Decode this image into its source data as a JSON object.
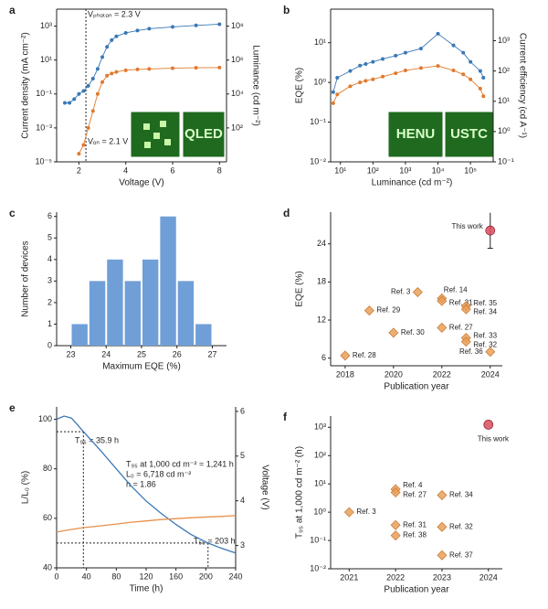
{
  "chart_data": [
    {
      "type": "line",
      "panel": "a",
      "xlabel": "Voltage (V)",
      "ylabel": "Current density (mA cm⁻²)",
      "y2label": "Luminance (cd m⁻²)",
      "yscale": "log",
      "y2scale": "log",
      "xlim": [
        1.05,
        8.3
      ],
      "ylim": [
        1e-05,
        10000
      ],
      "y2lim": [
        1,
        1000000000
      ],
      "xticks": [
        2,
        4,
        6,
        8
      ],
      "yticks": [
        {
          "value": 1e-05,
          "label": "10⁻⁵"
        },
        {
          "value": 0.001,
          "label": "10⁻³"
        },
        {
          "value": 0.1,
          "label": "10⁻¹"
        },
        {
          "value": 10,
          "label": "10¹"
        },
        {
          "value": 1000,
          "label": "10³"
        }
      ],
      "y2ticks": [
        {
          "value": 100,
          "label": "10²"
        },
        {
          "value": 10000,
          "label": "10⁴"
        },
        {
          "value": 1000000,
          "label": "10⁶"
        },
        {
          "value": 100000000,
          "label": "10⁸"
        }
      ],
      "x": [
        1.4,
        1.6,
        1.8,
        2.0,
        2.2,
        2.4,
        2.6,
        2.8,
        3.0,
        3.2,
        3.4,
        3.6,
        4.0,
        4.5,
        5.0,
        6.0,
        7.0,
        8.0
      ],
      "series": [
        {
          "color": "#3a78b5",
          "values": [
            0.03,
            0.03,
            0.05,
            0.1,
            0.15,
            0.3,
            0.8,
            3,
            15,
            60,
            150,
            250,
            400,
            550,
            700,
            900,
            1100,
            1300
          ]
        },
        {
          "color": "#e07a2e",
          "axis": "y2",
          "values": [
            null,
            null,
            null,
            3,
            10,
            100,
            1000,
            10000,
            50000,
            120000,
            160000,
            200000,
            250000,
            280000,
            300000,
            330000,
            350000,
            360000
          ]
        }
      ],
      "reference_x": 2.3,
      "annotations": [
        "Vₚₕₒₜₒₙ = 2.3 V",
        "Vₒₙ = 2.1 V"
      ],
      "inset_texts": [
        "QLED"
      ]
    },
    {
      "type": "line",
      "panel": "b",
      "xlabel": "Luminance (cd m⁻²)",
      "ylabel": "EQE (%)",
      "y2label": "Current efficiency (cd A⁻¹)",
      "xscale": "log",
      "yscale": "log",
      "y2scale": "log",
      "xlim": [
        5,
        500000
      ],
      "ylim": [
        0.01,
        70
      ],
      "y2lim": [
        0.1,
        11000
      ],
      "xticks": [
        {
          "value": 10,
          "label": "10¹"
        },
        {
          "value": 100,
          "label": "10²"
        },
        {
          "value": 1000,
          "label": "10³"
        },
        {
          "value": 10000,
          "label": "10⁴"
        },
        {
          "value": 100000,
          "label": "10⁵"
        }
      ],
      "yticks": [
        {
          "value": 0.01,
          "label": "10⁻²"
        },
        {
          "value": 0.1,
          "label": "10⁻¹"
        },
        {
          "value": 1,
          "label": "10⁰"
        },
        {
          "value": 10,
          "label": "10¹"
        }
      ],
      "y2ticks": [
        {
          "value": 0.1,
          "label": "10⁻¹"
        },
        {
          "value": 1,
          "label": "10⁰"
        },
        {
          "value": 10,
          "label": "10¹"
        },
        {
          "value": 100,
          "label": "10²"
        },
        {
          "value": 1000,
          "label": "10³"
        }
      ],
      "x": [
        6,
        8,
        20,
        40,
        60,
        100,
        200,
        500,
        1000,
        3000,
        10000,
        30000,
        60000,
        100000,
        200000,
        250000
      ],
      "series": [
        {
          "color": "#e07a2e",
          "values": [
            0.3,
            0.5,
            0.8,
            1.0,
            1.1,
            1.2,
            1.4,
            1.7,
            2.0,
            2.3,
            2.6,
            2.0,
            1.6,
            1.2,
            0.7,
            0.45
          ]
        },
        {
          "color": "#3a78b5",
          "axis": "y2",
          "values": [
            20,
            60,
            100,
            150,
            170,
            200,
            250,
            320,
            400,
            550,
            1700,
            700,
            400,
            200,
            100,
            60
          ]
        }
      ],
      "inset_texts": [
        "HENU",
        "USTC"
      ]
    },
    {
      "type": "histogram",
      "panel": "c",
      "xlabel": "Maximum EQE (%)",
      "ylabel": "Number of devices",
      "color": "#6f9fd6",
      "xlim": [
        22.6,
        27.4
      ],
      "ylim": [
        0,
        6.2
      ],
      "xticks": [
        23,
        24,
        25,
        26,
        27
      ],
      "yticks": [
        0,
        1,
        2,
        3,
        4,
        5,
        6
      ],
      "bins": [
        23,
        23.5,
        24,
        24.5,
        25,
        25.5,
        26,
        26.5,
        27
      ],
      "counts": [
        1,
        3,
        4,
        3,
        4,
        6,
        3,
        1
      ]
    },
    {
      "type": "scatter",
      "panel": "d",
      "xlabel": "Publication year",
      "ylabel": "EQE (%)",
      "xlim": [
        2017.4,
        2024.5
      ],
      "ylim": [
        4.8,
        29
      ],
      "xticks": [
        2018,
        2020,
        2022,
        2024
      ],
      "yticks": [
        6,
        12,
        18,
        24
      ],
      "series": [
        {
          "color": "#e8a05a",
          "marker": "diamond",
          "x": [
            2018,
            2019,
            2020,
            2021,
            2022,
            2022,
            2022,
            2023,
            2023,
            2023,
            2023,
            2024
          ],
          "values": [
            6.4,
            13.5,
            10.0,
            16.4,
            15.4,
            15.0,
            10.8,
            14.2,
            13.7,
            9.2,
            8.6,
            7.0
          ],
          "labels": [
            "Ref. 28",
            "Ref. 29",
            "Ref. 30",
            "Ref. 3",
            "Ref. 14",
            "Ref. 31",
            "Ref. 27",
            "Ref. 35",
            "Ref. 34",
            "Ref. 33",
            "Ref. 32",
            "Ref. 36"
          ]
        },
        {
          "name": "This work",
          "color": "#d94c5e",
          "marker": "circle",
          "x": [
            2024
          ],
          "values": [
            26.1
          ],
          "errors": [
            2.8
          ]
        }
      ]
    },
    {
      "type": "line",
      "panel": "e",
      "xlabel": "Time (h)",
      "ylabel": "L/L₀ (%)",
      "y2label": "Voltage (V)",
      "xlim": [
        0,
        240
      ],
      "ylim": [
        40,
        105
      ],
      "y2lim": [
        2.5,
        6.1
      ],
      "xticks": [
        0,
        40,
        80,
        120,
        160,
        200,
        240
      ],
      "yticks": [
        40,
        60,
        80,
        100
      ],
      "y2ticks": [
        3,
        4,
        5,
        6
      ],
      "x": [
        0,
        10,
        20,
        36,
        60,
        80,
        100,
        120,
        140,
        160,
        180,
        203,
        220,
        240
      ],
      "series": [
        {
          "color": "#3a78b5",
          "values": [
            100,
            101.3,
            100.5,
            95,
            87,
            80,
            73,
            67,
            62,
            57.5,
            53.5,
            50,
            48,
            46
          ]
        },
        {
          "color": "#e8904a",
          "axis": "y2",
          "values": [
            3.3,
            3.33,
            3.36,
            3.4,
            3.44,
            3.48,
            3.52,
            3.55,
            3.58,
            3.6,
            3.62,
            3.64,
            3.65,
            3.67
          ]
        }
      ],
      "reference_points": [
        [
          35.9,
          95
        ],
        [
          203,
          50
        ]
      ],
      "annotations": [
        "T₉₅ = 35.9 h",
        "T₉₅ at 1,000 cd m⁻² = 1,241 h",
        "L₀ = 6,718 cd m⁻²",
        "n = 1.86",
        "T₅₀ = 203 h"
      ]
    },
    {
      "type": "scatter",
      "panel": "f",
      "xlabel": "Publication year",
      "ylabel": "T₉₅ at 1,000 cd m⁻² (h)",
      "yscale": "log",
      "xlim": [
        2020.6,
        2024.3
      ],
      "ylim": [
        0.01,
        2500
      ],
      "xticks": [
        2021,
        2022,
        2023,
        2024
      ],
      "yticks": [
        {
          "value": 0.01,
          "label": "10⁻²"
        },
        {
          "value": 0.1,
          "label": "10⁻¹"
        },
        {
          "value": 1,
          "label": "10⁰"
        },
        {
          "value": 10,
          "label": "10¹"
        },
        {
          "value": 100,
          "label": "10²"
        },
        {
          "value": 1000,
          "label": "10³"
        }
      ],
      "series": [
        {
          "color": "#e8a05a",
          "marker": "diamond",
          "x": [
            2021,
            2022,
            2022,
            2022,
            2022,
            2023,
            2023,
            2023
          ],
          "values": [
            1.0,
            6.5,
            5.0,
            0.35,
            0.15,
            4.0,
            0.3,
            0.03
          ],
          "labels": [
            "Ref. 3",
            "Ref. 4",
            "Ref. 27",
            "Ref. 31",
            "Ref. 38",
            "Ref. 34",
            "Ref. 32",
            "Ref. 37"
          ]
        },
        {
          "name": "This work",
          "color": "#d94c5e",
          "marker": "circle",
          "x": [
            2024
          ],
          "values": [
            1241
          ]
        }
      ]
    }
  ]
}
